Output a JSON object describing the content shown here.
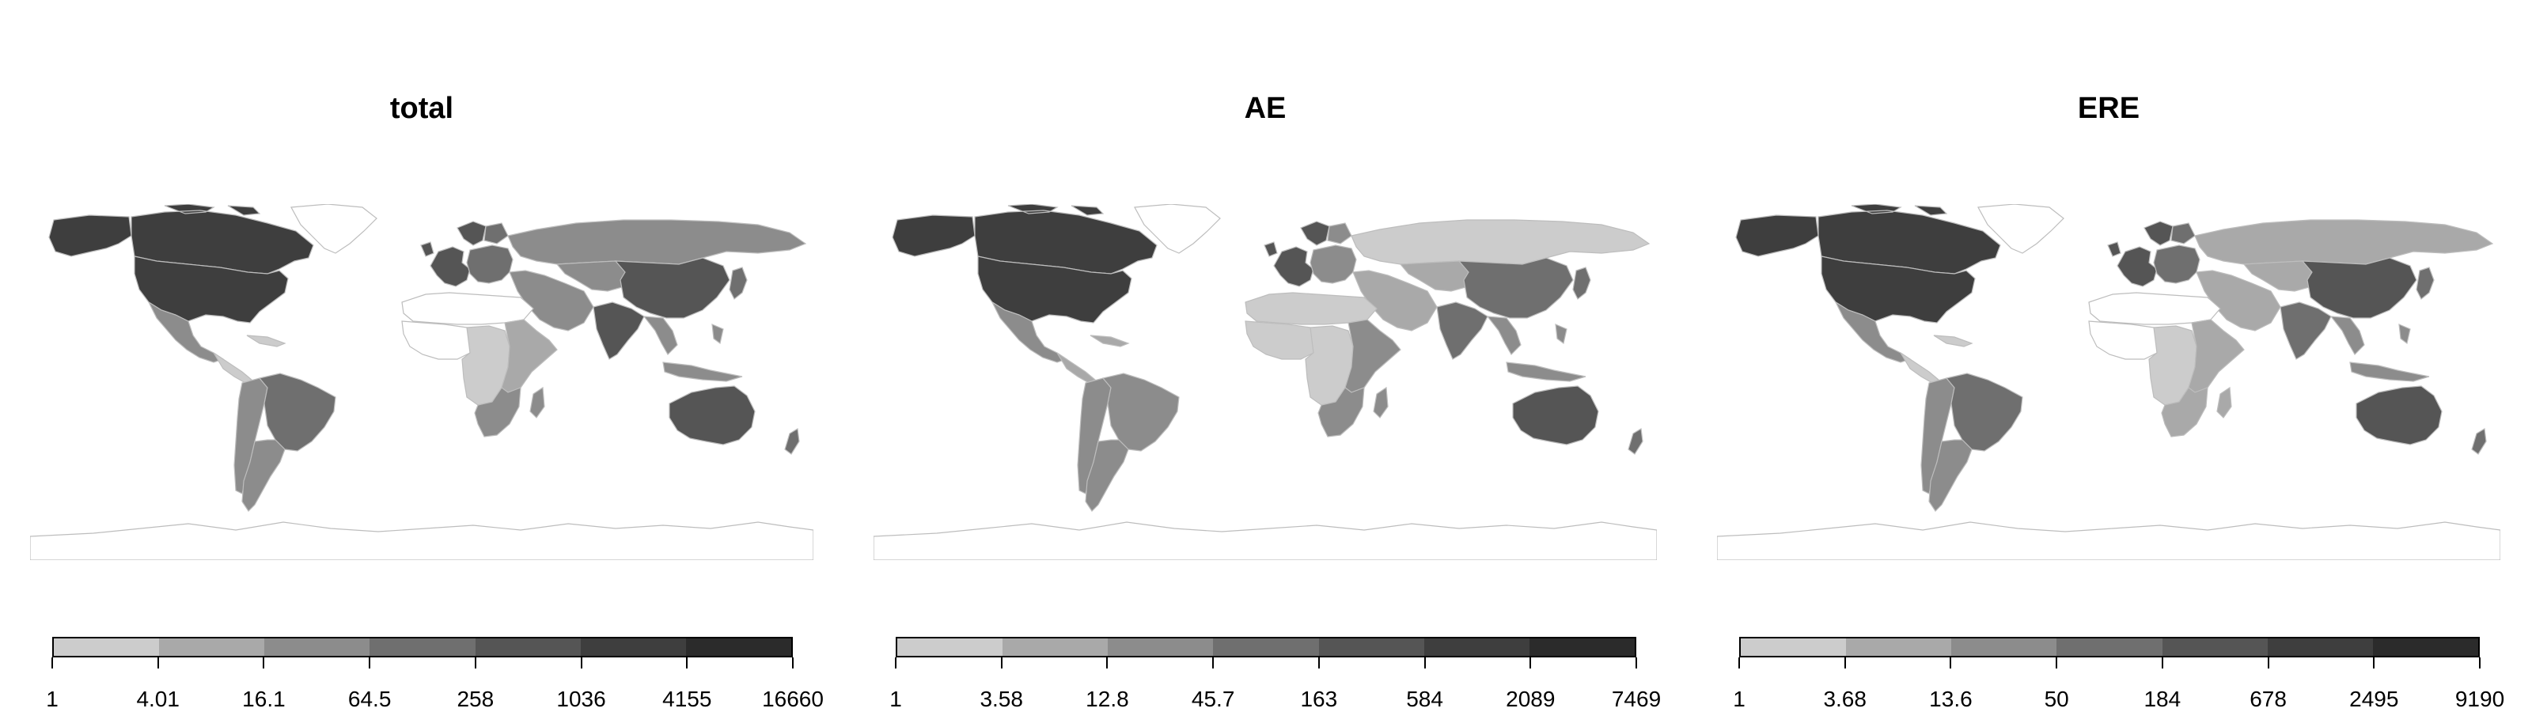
{
  "panels": [
    {
      "title": "total",
      "legend_breaks": [
        "1",
        "4.01",
        "16.1",
        "64.5",
        "258",
        "1036",
        "4155",
        "16660"
      ],
      "region_class": {
        "north_america": 6,
        "usa": 6,
        "alaska": 6,
        "greenland": 0,
        "mexico": 3,
        "central_america": 1,
        "brazil": 4,
        "south_america_west": 3,
        "argentina": 3,
        "western_europe": 5,
        "eastern_europe": 4,
        "russia": 3,
        "middle_east": 3,
        "north_africa": 0,
        "west_africa": 0,
        "east_africa": 2,
        "central_africa": 1,
        "southern_africa": 3,
        "india": 5,
        "china": 5,
        "southeast_asia": 3,
        "japan": 4,
        "australia": 5,
        "new_zealand": 4,
        "antarctica": 0
      }
    },
    {
      "title": "AE",
      "legend_breaks": [
        "1",
        "3.58",
        "12.8",
        "45.7",
        "163",
        "584",
        "2089",
        "7469"
      ],
      "region_class": {
        "north_america": 6,
        "usa": 6,
        "alaska": 6,
        "greenland": 0,
        "mexico": 3,
        "central_america": 2,
        "brazil": 3,
        "south_america_west": 3,
        "argentina": 3,
        "western_europe": 5,
        "eastern_europe": 3,
        "russia": 1,
        "middle_east": 2,
        "north_africa": 1,
        "west_africa": 1,
        "east_africa": 3,
        "central_africa": 1,
        "southern_africa": 3,
        "india": 4,
        "china": 4,
        "southeast_asia": 3,
        "japan": 4,
        "australia": 5,
        "new_zealand": 4,
        "antarctica": 0
      }
    },
    {
      "title": "ERE",
      "legend_breaks": [
        "1",
        "3.68",
        "13.6",
        "50",
        "184",
        "678",
        "2495",
        "9190"
      ],
      "region_class": {
        "north_america": 6,
        "usa": 6,
        "alaska": 6,
        "greenland": 0,
        "mexico": 3,
        "central_america": 1,
        "brazil": 4,
        "south_america_west": 3,
        "argentina": 3,
        "western_europe": 5,
        "eastern_europe": 4,
        "russia": 2,
        "middle_east": 2,
        "north_africa": 0,
        "west_africa": 0,
        "east_africa": 2,
        "central_africa": 1,
        "southern_africa": 2,
        "india": 4,
        "china": 5,
        "southeast_asia": 3,
        "japan": 4,
        "australia": 5,
        "new_zealand": 4,
        "antarctica": 0
      }
    }
  ],
  "palette": [
    "#ffffff",
    "#cccccc",
    "#a9a9a9",
    "#8c8c8c",
    "#6f6f6f",
    "#555555",
    "#3e3e3e",
    "#2b2b2b"
  ],
  "legend_colors": [
    "#cccccc",
    "#a9a9a9",
    "#8c8c8c",
    "#6f6f6f",
    "#555555",
    "#3e3e3e",
    "#2b2b2b"
  ]
}
